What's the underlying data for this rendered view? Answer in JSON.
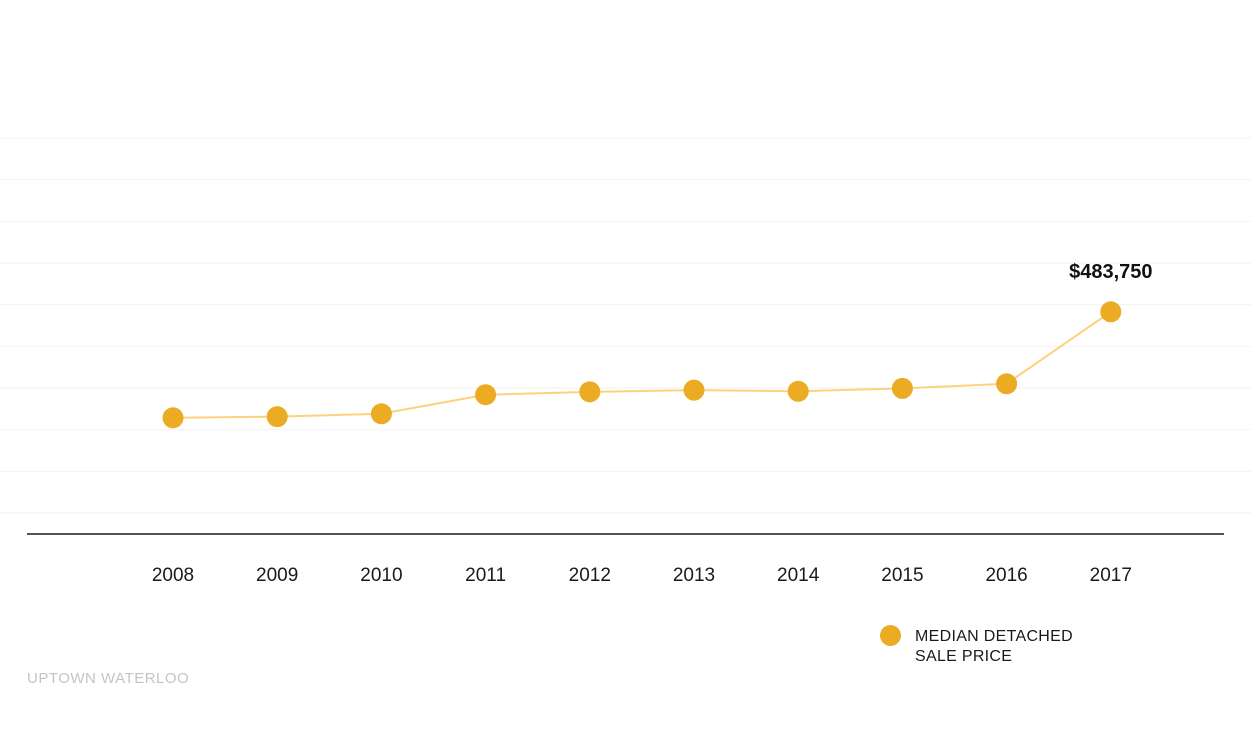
{
  "colors": {
    "marker": "#ebab23",
    "line": "#fbd27e",
    "grid": "#f2f2f2",
    "axis": "#1a1a1a"
  },
  "legend": {
    "line1": "MEDIAN DETACHED",
    "line2": "SALE PRICE"
  },
  "watermark": "UPTOWN WATERLOO",
  "chart_data": {
    "type": "line",
    "x": [
      "2008",
      "2009",
      "2010",
      "2011",
      "2012",
      "2013",
      "2014",
      "2015",
      "2016",
      "2017"
    ],
    "series": [
      {
        "name": "MEDIAN DETACHED SALE PRICE",
        "values": [
          300000,
          302000,
          307000,
          340000,
          345000,
          348000,
          346000,
          351000,
          359000,
          483750
        ]
      }
    ],
    "annotations": [
      {
        "x": "2017",
        "text": "$483,750"
      }
    ],
    "ylim": [
      135000,
      785000
    ],
    "grid": true,
    "legend_position": "bottom-right"
  }
}
